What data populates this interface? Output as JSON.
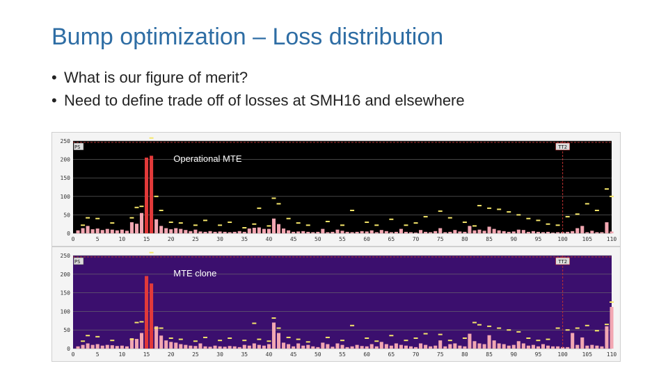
{
  "slide": {
    "title": "Bump optimization – Loss distribution",
    "bullets": [
      "What is our figure of merit?",
      "Need to define trade off of losses at SMH16 and elsewhere"
    ],
    "bullet_symbol": "•"
  },
  "colors": {
    "title": "#2e6da4",
    "top_plot_bg": "#000000",
    "bottom_plot_bg": "#3b0f6e",
    "bar_fill": "#f2a7b2",
    "bar_fill_high": "#e23a3a",
    "threshold_mark": "#f5e66a"
  },
  "chart_data": [
    {
      "type": "bar",
      "name": "top",
      "annotation": "Operational MTE",
      "corner_left": "PS",
      "corner_right": "TT2",
      "xlim": [
        0,
        110
      ],
      "ylim": [
        0,
        250
      ],
      "xticks": [
        0,
        5,
        10,
        15,
        20,
        25,
        30,
        35,
        40,
        45,
        50,
        55,
        60,
        65,
        70,
        75,
        80,
        85,
        90,
        95,
        100,
        105,
        110
      ],
      "yticks": [
        0,
        50,
        100,
        150,
        200,
        250
      ],
      "vline_x": 100,
      "bars": [
        [
          1,
          8
        ],
        [
          2,
          14
        ],
        [
          3,
          20
        ],
        [
          4,
          11
        ],
        [
          5,
          13
        ],
        [
          6,
          9
        ],
        [
          7,
          12
        ],
        [
          8,
          10
        ],
        [
          9,
          8
        ],
        [
          10,
          10
        ],
        [
          11,
          7
        ],
        [
          12,
          30
        ],
        [
          13,
          26
        ],
        [
          14,
          55
        ],
        [
          15,
          205
        ],
        [
          16,
          210
        ],
        [
          17,
          38
        ],
        [
          18,
          20
        ],
        [
          19,
          14
        ],
        [
          20,
          11
        ],
        [
          21,
          14
        ],
        [
          22,
          12
        ],
        [
          23,
          9
        ],
        [
          24,
          6
        ],
        [
          25,
          10
        ],
        [
          26,
          5
        ],
        [
          27,
          4
        ],
        [
          28,
          6
        ],
        [
          29,
          4
        ],
        [
          30,
          5
        ],
        [
          31,
          4
        ],
        [
          32,
          3
        ],
        [
          33,
          4
        ],
        [
          34,
          6
        ],
        [
          35,
          4
        ],
        [
          36,
          13
        ],
        [
          37,
          15
        ],
        [
          38,
          16
        ],
        [
          39,
          12
        ],
        [
          40,
          12
        ],
        [
          41,
          40
        ],
        [
          42,
          25
        ],
        [
          43,
          13
        ],
        [
          44,
          8
        ],
        [
          45,
          4
        ],
        [
          46,
          5
        ],
        [
          47,
          6
        ],
        [
          48,
          4
        ],
        [
          49,
          3
        ],
        [
          50,
          4
        ],
        [
          51,
          12
        ],
        [
          52,
          3
        ],
        [
          53,
          4
        ],
        [
          54,
          10
        ],
        [
          55,
          7
        ],
        [
          56,
          4
        ],
        [
          57,
          3
        ],
        [
          58,
          4
        ],
        [
          59,
          6
        ],
        [
          60,
          5
        ],
        [
          61,
          8
        ],
        [
          62,
          3
        ],
        [
          63,
          9
        ],
        [
          64,
          6
        ],
        [
          65,
          3
        ],
        [
          66,
          4
        ],
        [
          67,
          12
        ],
        [
          68,
          4
        ],
        [
          69,
          3
        ],
        [
          70,
          2
        ],
        [
          71,
          9
        ],
        [
          72,
          4
        ],
        [
          73,
          3
        ],
        [
          74,
          6
        ],
        [
          75,
          14
        ],
        [
          76,
          3
        ],
        [
          77,
          4
        ],
        [
          78,
          9
        ],
        [
          79,
          5
        ],
        [
          80,
          4
        ],
        [
          81,
          20
        ],
        [
          82,
          8
        ],
        [
          83,
          10
        ],
        [
          84,
          7
        ],
        [
          85,
          18
        ],
        [
          86,
          12
        ],
        [
          87,
          8
        ],
        [
          88,
          6
        ],
        [
          89,
          4
        ],
        [
          90,
          5
        ],
        [
          91,
          10
        ],
        [
          92,
          9
        ],
        [
          93,
          4
        ],
        [
          94,
          6
        ],
        [
          95,
          4
        ],
        [
          96,
          3
        ],
        [
          97,
          4
        ],
        [
          98,
          2
        ],
        [
          99,
          3
        ],
        [
          100,
          3
        ],
        [
          101,
          4
        ],
        [
          102,
          6
        ],
        [
          103,
          14
        ],
        [
          104,
          20
        ],
        [
          105,
          3
        ],
        [
          106,
          7
        ],
        [
          107,
          3
        ],
        [
          108,
          3
        ],
        [
          109,
          30
        ],
        [
          110,
          5
        ]
      ],
      "limits": [
        [
          2,
          22
        ],
        [
          3,
          42
        ],
        [
          5,
          40
        ],
        [
          8,
          28
        ],
        [
          12,
          42
        ],
        [
          13,
          70
        ],
        [
          14,
          73
        ],
        [
          16,
          260
        ],
        [
          17,
          100
        ],
        [
          18,
          62
        ],
        [
          20,
          30
        ],
        [
          22,
          28
        ],
        [
          25,
          22
        ],
        [
          27,
          35
        ],
        [
          30,
          22
        ],
        [
          32,
          30
        ],
        [
          35,
          15
        ],
        [
          37,
          25
        ],
        [
          38,
          68
        ],
        [
          40,
          20
        ],
        [
          41,
          95
        ],
        [
          42,
          80
        ],
        [
          44,
          40
        ],
        [
          46,
          28
        ],
        [
          48,
          22
        ],
        [
          52,
          32
        ],
        [
          55,
          22
        ],
        [
          57,
          62
        ],
        [
          60,
          30
        ],
        [
          62,
          22
        ],
        [
          65,
          38
        ],
        [
          68,
          22
        ],
        [
          70,
          28
        ],
        [
          72,
          45
        ],
        [
          75,
          60
        ],
        [
          77,
          42
        ],
        [
          80,
          30
        ],
        [
          82,
          20
        ],
        [
          83,
          75
        ],
        [
          85,
          68
        ],
        [
          87,
          65
        ],
        [
          89,
          58
        ],
        [
          91,
          50
        ],
        [
          93,
          40
        ],
        [
          95,
          35
        ],
        [
          97,
          25
        ],
        [
          99,
          22
        ],
        [
          101,
          45
        ],
        [
          103,
          52
        ],
        [
          105,
          80
        ],
        [
          107,
          62
        ],
        [
          109,
          120
        ],
        [
          110,
          100
        ]
      ]
    },
    {
      "type": "bar",
      "name": "bottom",
      "annotation": "MTE clone",
      "corner_left": "PS",
      "corner_right": "TT2",
      "xlim": [
        0,
        110
      ],
      "ylim": [
        0,
        250
      ],
      "xticks": [
        0,
        5,
        10,
        15,
        20,
        25,
        30,
        35,
        40,
        45,
        50,
        55,
        60,
        65,
        70,
        75,
        80,
        85,
        90,
        95,
        100,
        105,
        110
      ],
      "yticks": [
        0,
        50,
        100,
        150,
        200,
        250
      ],
      "vline_x": 100,
      "bars": [
        [
          1,
          6
        ],
        [
          2,
          10
        ],
        [
          3,
          14
        ],
        [
          4,
          10
        ],
        [
          5,
          12
        ],
        [
          6,
          8
        ],
        [
          7,
          10
        ],
        [
          8,
          9
        ],
        [
          9,
          7
        ],
        [
          10,
          8
        ],
        [
          11,
          6
        ],
        [
          12,
          28
        ],
        [
          13,
          26
        ],
        [
          14,
          42
        ],
        [
          15,
          195
        ],
        [
          16,
          175
        ],
        [
          17,
          60
        ],
        [
          18,
          35
        ],
        [
          19,
          22
        ],
        [
          20,
          18
        ],
        [
          21,
          16
        ],
        [
          22,
          12
        ],
        [
          23,
          10
        ],
        [
          24,
          8
        ],
        [
          25,
          7
        ],
        [
          26,
          14
        ],
        [
          27,
          6
        ],
        [
          28,
          5
        ],
        [
          29,
          8
        ],
        [
          30,
          6
        ],
        [
          31,
          5
        ],
        [
          32,
          7
        ],
        [
          33,
          6
        ],
        [
          34,
          4
        ],
        [
          35,
          10
        ],
        [
          36,
          8
        ],
        [
          37,
          14
        ],
        [
          38,
          10
        ],
        [
          39,
          8
        ],
        [
          40,
          12
        ],
        [
          41,
          70
        ],
        [
          42,
          42
        ],
        [
          43,
          16
        ],
        [
          44,
          12
        ],
        [
          45,
          6
        ],
        [
          46,
          14
        ],
        [
          47,
          8
        ],
        [
          48,
          10
        ],
        [
          49,
          6
        ],
        [
          50,
          4
        ],
        [
          51,
          16
        ],
        [
          52,
          12
        ],
        [
          53,
          5
        ],
        [
          54,
          14
        ],
        [
          55,
          10
        ],
        [
          56,
          4
        ],
        [
          57,
          6
        ],
        [
          58,
          10
        ],
        [
          59,
          7
        ],
        [
          60,
          6
        ],
        [
          61,
          12
        ],
        [
          62,
          6
        ],
        [
          63,
          18
        ],
        [
          64,
          12
        ],
        [
          65,
          8
        ],
        [
          66,
          14
        ],
        [
          67,
          10
        ],
        [
          68,
          8
        ],
        [
          69,
          6
        ],
        [
          70,
          4
        ],
        [
          71,
          14
        ],
        [
          72,
          10
        ],
        [
          73,
          6
        ],
        [
          74,
          8
        ],
        [
          75,
          22
        ],
        [
          76,
          6
        ],
        [
          77,
          12
        ],
        [
          78,
          14
        ],
        [
          79,
          8
        ],
        [
          80,
          6
        ],
        [
          81,
          40
        ],
        [
          82,
          20
        ],
        [
          83,
          14
        ],
        [
          84,
          12
        ],
        [
          85,
          36
        ],
        [
          86,
          22
        ],
        [
          87,
          14
        ],
        [
          88,
          12
        ],
        [
          89,
          8
        ],
        [
          90,
          10
        ],
        [
          91,
          20
        ],
        [
          92,
          14
        ],
        [
          93,
          8
        ],
        [
          94,
          10
        ],
        [
          95,
          6
        ],
        [
          96,
          12
        ],
        [
          97,
          8
        ],
        [
          98,
          6
        ],
        [
          99,
          6
        ],
        [
          100,
          4
        ],
        [
          101,
          4
        ],
        [
          102,
          42
        ],
        [
          103,
          10
        ],
        [
          104,
          30
        ],
        [
          105,
          8
        ],
        [
          106,
          10
        ],
        [
          107,
          8
        ],
        [
          108,
          6
        ],
        [
          109,
          60
        ],
        [
          110,
          112
        ]
      ],
      "limits": [
        [
          2,
          20
        ],
        [
          3,
          35
        ],
        [
          5,
          32
        ],
        [
          8,
          22
        ],
        [
          12,
          25
        ],
        [
          13,
          70
        ],
        [
          14,
          72
        ],
        [
          16,
          268
        ],
        [
          17,
          55
        ],
        [
          18,
          55
        ],
        [
          20,
          28
        ],
        [
          22,
          25
        ],
        [
          25,
          20
        ],
        [
          27,
          30
        ],
        [
          30,
          22
        ],
        [
          32,
          28
        ],
        [
          35,
          22
        ],
        [
          37,
          68
        ],
        [
          38,
          25
        ],
        [
          40,
          20
        ],
        [
          41,
          82
        ],
        [
          42,
          55
        ],
        [
          44,
          30
        ],
        [
          46,
          25
        ],
        [
          48,
          18
        ],
        [
          52,
          30
        ],
        [
          55,
          22
        ],
        [
          57,
          62
        ],
        [
          60,
          28
        ],
        [
          62,
          20
        ],
        [
          65,
          35
        ],
        [
          68,
          22
        ],
        [
          70,
          28
        ],
        [
          72,
          40
        ],
        [
          75,
          38
        ],
        [
          77,
          22
        ],
        [
          80,
          28
        ],
        [
          82,
          70
        ],
        [
          83,
          64
        ],
        [
          85,
          60
        ],
        [
          87,
          55
        ],
        [
          89,
          50
        ],
        [
          91,
          45
        ],
        [
          93,
          28
        ],
        [
          95,
          22
        ],
        [
          97,
          25
        ],
        [
          99,
          55
        ],
        [
          101,
          50
        ],
        [
          103,
          55
        ],
        [
          105,
          62
        ],
        [
          107,
          48
        ],
        [
          109,
          65
        ],
        [
          110,
          125
        ]
      ]
    }
  ]
}
